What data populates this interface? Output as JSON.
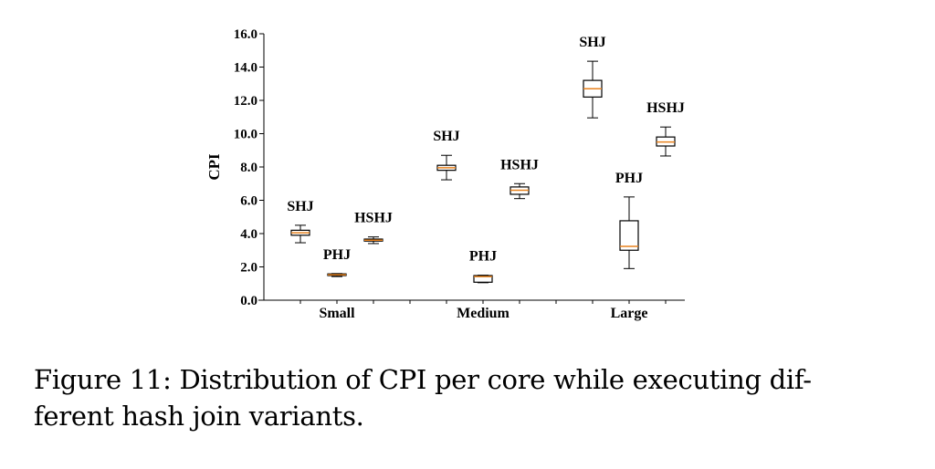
{
  "caption": {
    "line1": "Figure 11: Distribution of CPI per core while executing dif-",
    "line2": "ferent hash join variants."
  },
  "chart_data": {
    "type": "boxplot",
    "title": "",
    "xlabel": "",
    "ylabel": "CPI",
    "ylim": [
      0,
      16
    ],
    "yticks": [
      "0.0",
      "2.0",
      "4.0",
      "6.0",
      "8.0",
      "10.0",
      "12.0",
      "14.0",
      "16.0"
    ],
    "categories": [
      "Small",
      "Medium",
      "Large"
    ],
    "grid": false,
    "legend": "none (series labelled above each box)",
    "colors": {
      "box": "#000000",
      "median": "#e8821e"
    },
    "groups": [
      {
        "category": "Small",
        "boxes": [
          {
            "series": "SHJ",
            "whisker_low": 3.45,
            "q1": 3.9,
            "median": 4.05,
            "q3": 4.2,
            "whisker_high": 4.5
          },
          {
            "series": "PHJ",
            "whisker_low": 1.42,
            "q1": 1.48,
            "median": 1.53,
            "q3": 1.58,
            "whisker_high": 1.6
          },
          {
            "series": "HSHJ",
            "whisker_low": 3.4,
            "q1": 3.55,
            "median": 3.6,
            "q3": 3.67,
            "whisker_high": 3.8
          }
        ]
      },
      {
        "category": "Medium",
        "boxes": [
          {
            "series": "SHJ",
            "whisker_low": 7.23,
            "q1": 7.8,
            "median": 7.95,
            "q3": 8.1,
            "whisker_high": 8.7
          },
          {
            "series": "PHJ",
            "whisker_low": 1.05,
            "q1": 1.08,
            "median": 1.42,
            "q3": 1.48,
            "whisker_high": 1.5
          },
          {
            "series": "HSHJ",
            "whisker_low": 6.1,
            "q1": 6.36,
            "median": 6.6,
            "q3": 6.8,
            "whisker_high": 7.0
          }
        ]
      },
      {
        "category": "Large",
        "boxes": [
          {
            "series": "SHJ",
            "whisker_low": 10.95,
            "q1": 12.2,
            "median": 12.7,
            "q3": 13.2,
            "whisker_high": 14.35
          },
          {
            "series": "PHJ",
            "whisker_low": 1.9,
            "q1": 3.0,
            "median": 3.23,
            "q3": 4.77,
            "whisker_high": 6.2
          },
          {
            "series": "HSHJ",
            "whisker_low": 8.66,
            "q1": 9.26,
            "median": 9.5,
            "q3": 9.8,
            "whisker_high": 10.4
          }
        ]
      }
    ]
  }
}
